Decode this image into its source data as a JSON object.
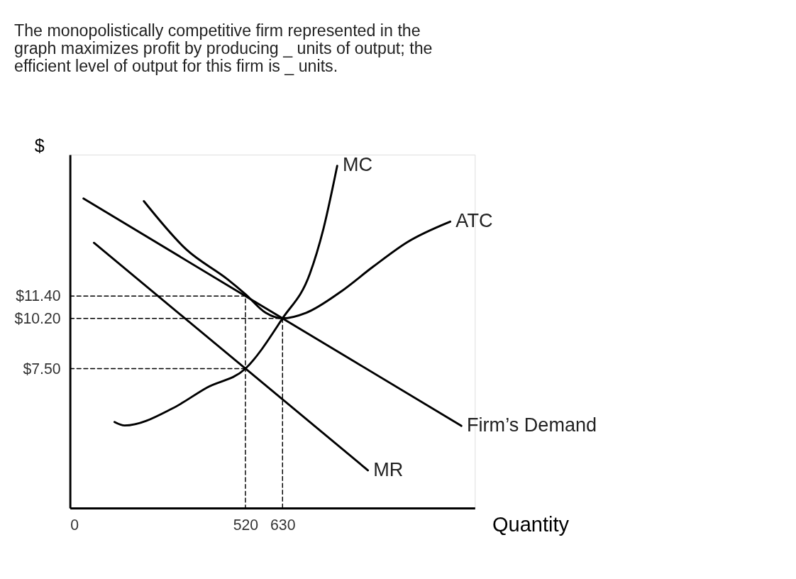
{
  "chart_data": {
    "type": "line",
    "title": "The monopolistically competitive firm represented in the graph maximizes profit by producing _ units of output; the efficient level of output for this firm is _ units.",
    "xlabel": "Quantity",
    "ylabel": "$",
    "xlim": [
      0,
      1200
    ],
    "ylim": [
      0,
      19
    ],
    "xticks": [
      0,
      520,
      630
    ],
    "yticks": [
      {
        "value": 11.4,
        "label": "$11.40"
      },
      {
        "value": 10.2,
        "label": "$10.20"
      },
      {
        "value": 7.5,
        "label": "$7.50"
      }
    ],
    "grid": false,
    "marker": "none",
    "series": [
      {
        "name": "MC",
        "color": "#000000",
        "line_style": "solid",
        "x": [
          132,
          162,
          305,
          406,
          520,
          630,
          711,
          751,
          792
        ],
        "values": [
          4.63,
          4.44,
          5.37,
          6.48,
          7.5,
          10.2,
          12.6,
          15.0,
          18.4
        ]
      },
      {
        "name": "ATC",
        "color": "#000000",
        "line_style": "solid",
        "x": [
          219,
          345,
          467,
          520,
          580,
          630,
          700,
          800,
          900,
          1000,
          1127
        ],
        "values": [
          16.5,
          13.9,
          12.3,
          11.5,
          10.5,
          10.2,
          10.5,
          11.6,
          13.0,
          14.3,
          15.4
        ]
      },
      {
        "name": "Firm’s Demand",
        "color": "#000000",
        "line_style": "solid",
        "x": [
          40,
          520,
          630,
          1160
        ],
        "values": [
          16.64,
          11.4,
          10.2,
          4.42
        ]
      },
      {
        "name": "MR",
        "color": "#000000",
        "line_style": "solid",
        "x": [
          71,
          520,
          883
        ],
        "values": [
          14.26,
          7.5,
          2.03
        ]
      },
      {
        "color": "#000000",
        "line_style": "dashed",
        "x": [
          0,
          520,
          520
        ],
        "values": [
          11.4,
          11.4,
          0
        ]
      },
      {
        "color": "#000000",
        "line_style": "dashed",
        "x": [
          0,
          630,
          630
        ],
        "values": [
          10.2,
          10.2,
          0
        ]
      },
      {
        "color": "#000000",
        "line_style": "dashed",
        "x": [
          0,
          520
        ],
        "values": [
          7.5,
          7.5
        ]
      }
    ]
  }
}
